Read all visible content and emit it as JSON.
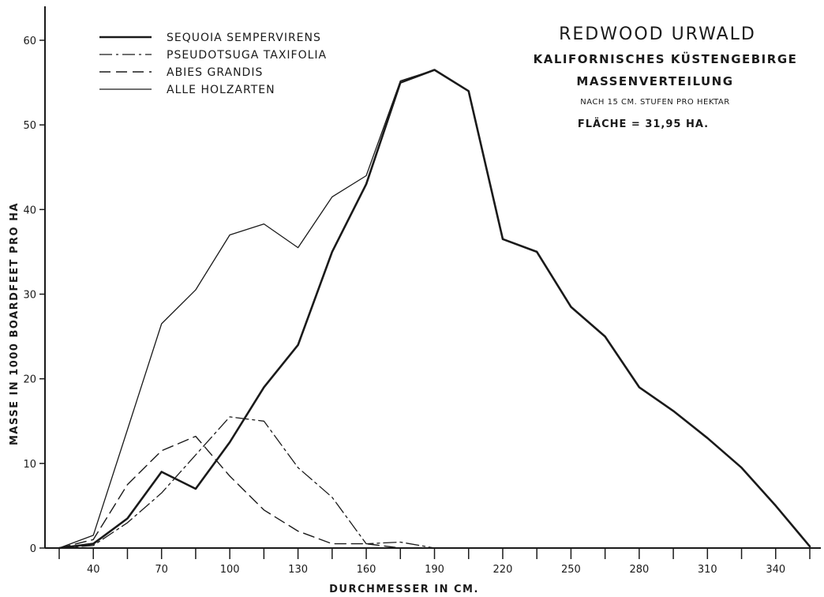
{
  "chart_data": {
    "type": "line",
    "title": "REDWOOD URWALD",
    "subtitle_lines": [
      "KALIFORNISCHES KÜSTENGEBIRGE",
      "MASSENVERTEILUNG",
      "NACH 15 CM. STUFEN PRO HEKTAR",
      "FLÄCHE = 31,95 HA."
    ],
    "xlabel": "DURCHMESSER IN CM.",
    "ylabel": "MASSE IN 1000 BOARDFEET PRO HA",
    "xlim": [
      23,
      362
    ],
    "ylim": [
      0,
      63
    ],
    "x_ticks": [
      25,
      40,
      55,
      70,
      85,
      100,
      115,
      130,
      145,
      160,
      175,
      190,
      205,
      220,
      235,
      250,
      265,
      280,
      295,
      310,
      325,
      340,
      355
    ],
    "x_tick_labels": [
      "40",
      "70",
      "100",
      "130",
      "160",
      "190",
      "220",
      "250",
      "280",
      "310",
      "340"
    ],
    "x_tick_label_values": [
      40,
      70,
      100,
      130,
      160,
      190,
      220,
      250,
      280,
      310,
      340
    ],
    "y_ticks": [
      0,
      10,
      20,
      30,
      40,
      50,
      60
    ],
    "y_tick_labels": [
      "0",
      "10",
      "20",
      "30",
      "40",
      "50",
      "60"
    ],
    "legend_position": "top-left",
    "grid": false,
    "series": [
      {
        "name": "SEQUOIA SEMPERVIRENS",
        "style": "solid-heavy",
        "color": "#1a1a1a",
        "x": [
          25,
          40,
          55,
          70,
          85,
          100,
          115,
          130,
          145,
          160,
          175,
          190,
          205,
          220,
          235,
          250,
          265,
          280,
          295,
          310,
          325,
          340,
          355
        ],
        "y": [
          0,
          0.5,
          3.5,
          9,
          7,
          12.5,
          19,
          24,
          35,
          43,
          55,
          56.5,
          54,
          36.5,
          35,
          28.5,
          25,
          19,
          16.2,
          13,
          9.5,
          5,
          0.2
        ]
      },
      {
        "name": "PSEUDOTSUGA TAXIFOLIA",
        "style": "dash-dot",
        "color": "#1a1a1a",
        "x": [
          25,
          40,
          55,
          70,
          85,
          100,
          115,
          130,
          145,
          160,
          175,
          190
        ],
        "y": [
          0,
          0.3,
          3,
          6.5,
          11,
          15.5,
          15,
          9.5,
          6,
          0.5,
          0.7,
          0
        ]
      },
      {
        "name": "ABIES GRANDIS",
        "style": "dashed",
        "color": "#1a1a1a",
        "x": [
          25,
          40,
          55,
          70,
          85,
          100,
          115,
          130,
          145,
          160,
          175
        ],
        "y": [
          0,
          1,
          7.5,
          11.5,
          13.2,
          8.5,
          4.5,
          2,
          0.5,
          0.5,
          0
        ]
      },
      {
        "name": "ALLE HOLZARTEN",
        "style": "solid-thin",
        "color": "#1a1a1a",
        "x": [
          25,
          40,
          55,
          70,
          85,
          100,
          115,
          130,
          145,
          160,
          175,
          190,
          205,
          220,
          235,
          250,
          265,
          280,
          295,
          310,
          325,
          340,
          355
        ],
        "y": [
          0,
          1.5,
          14,
          26.5,
          30.5,
          37,
          38.3,
          35.5,
          41.5,
          44,
          55.2,
          56.5,
          54,
          36.5,
          35,
          28.5,
          25,
          19,
          16.2,
          13,
          9.5,
          5,
          0.2
        ]
      }
    ]
  }
}
